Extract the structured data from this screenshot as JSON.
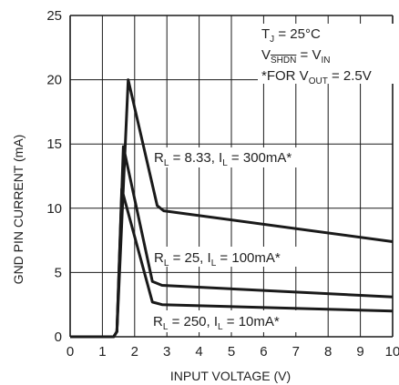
{
  "chart_data": {
    "type": "line",
    "xlabel": "INPUT VOLTAGE (V)",
    "ylabel": "GND PIN CURRENT (mA)",
    "xlim": [
      0,
      10
    ],
    "ylim": [
      0,
      25
    ],
    "x_ticks": [
      "0",
      "1",
      "2",
      "3",
      "4",
      "5",
      "6",
      "7",
      "8",
      "9",
      "10"
    ],
    "y_ticks": [
      "0",
      "5",
      "10",
      "15",
      "20",
      "25"
    ],
    "grid": true,
    "series": [
      {
        "name": "R_L = 8.33, I_L = 300mA*",
        "points": [
          [
            0,
            0
          ],
          [
            1.35,
            0
          ],
          [
            1.45,
            0.4
          ],
          [
            1.8,
            20
          ],
          [
            2.7,
            10.2
          ],
          [
            2.9,
            9.8
          ],
          [
            10,
            7.4
          ]
        ]
      },
      {
        "name": "R_L = 25, I_L = 100mA*",
        "points": [
          [
            0,
            0
          ],
          [
            1.35,
            0
          ],
          [
            1.45,
            0.4
          ],
          [
            1.65,
            14.8
          ],
          [
            2.55,
            4.3
          ],
          [
            2.85,
            4.0
          ],
          [
            10,
            3.1
          ]
        ]
      },
      {
        "name": "R_L = 250, I_L = 10mA*",
        "points": [
          [
            0,
            0
          ],
          [
            1.35,
            0
          ],
          [
            1.45,
            0.4
          ],
          [
            1.6,
            11.5
          ],
          [
            2.55,
            2.7
          ],
          [
            2.85,
            2.5
          ],
          [
            10,
            2.0
          ]
        ]
      }
    ],
    "conditions": {
      "tj": "T_J = 25°C",
      "vshdn": "V_SHDN = V_IN",
      "vout": "*FOR V_OUT = 2.5V"
    },
    "color": "#1a1a1a",
    "grid_color": "#1a1a1a"
  }
}
